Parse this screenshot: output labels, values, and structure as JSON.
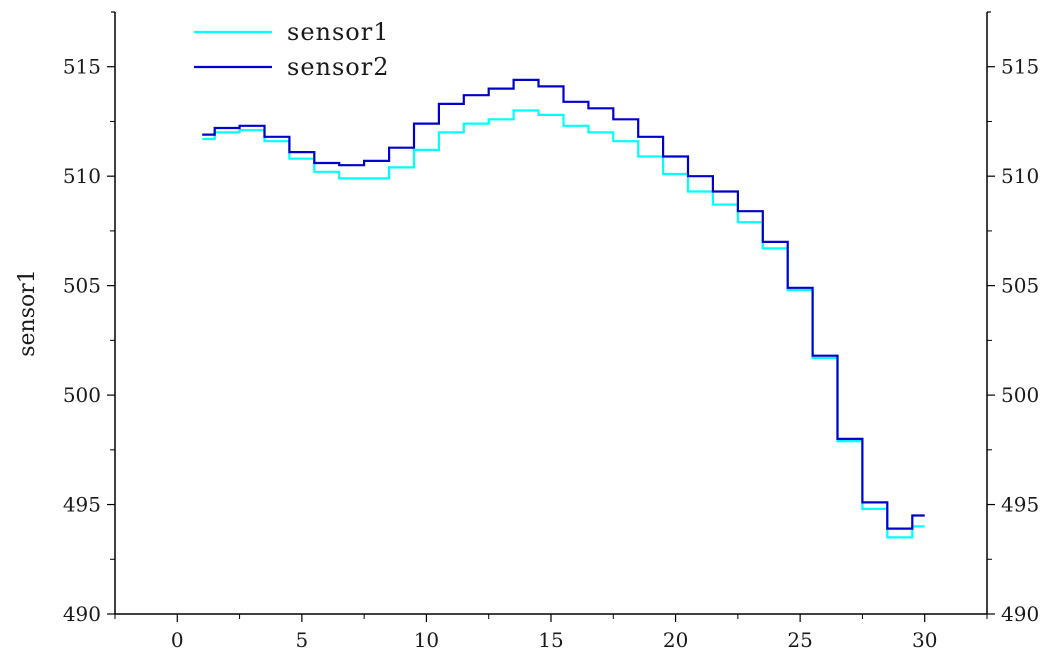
{
  "chart_data": {
    "type": "line",
    "step": true,
    "title": "",
    "xlabel": "",
    "ylabel": "sensor1",
    "xlim": [
      -2.5,
      32.5
    ],
    "ylim": [
      490,
      517.5
    ],
    "x_ticks": [
      0,
      5,
      10,
      15,
      20,
      25,
      30
    ],
    "y_ticks": [
      490,
      495,
      500,
      505,
      510,
      515
    ],
    "secondary_y_axis": true,
    "grid": false,
    "legend": "top-left",
    "series": [
      {
        "name": "sensor1",
        "color": "#00ffff",
        "x": [
          1,
          2,
          3,
          4,
          5,
          6,
          7,
          8,
          9,
          10,
          11,
          12,
          13,
          14,
          15,
          16,
          17,
          18,
          19,
          20,
          21,
          22,
          23,
          24,
          25,
          26,
          27,
          28,
          29,
          30
        ],
        "values": [
          511.7,
          512.0,
          512.1,
          511.6,
          510.8,
          510.2,
          509.9,
          509.9,
          510.4,
          511.2,
          512.0,
          512.4,
          512.6,
          513.0,
          512.8,
          512.3,
          512.0,
          511.6,
          510.9,
          510.1,
          509.3,
          508.7,
          507.9,
          506.7,
          504.8,
          501.7,
          497.9,
          494.8,
          493.5,
          494.0
        ]
      },
      {
        "name": "sensor2",
        "color": "#0000cc",
        "x": [
          1,
          2,
          3,
          4,
          5,
          6,
          7,
          8,
          9,
          10,
          11,
          12,
          13,
          14,
          15,
          16,
          17,
          18,
          19,
          20,
          21,
          22,
          23,
          24,
          25,
          26,
          27,
          28,
          29,
          30
        ],
        "values": [
          511.9,
          512.2,
          512.3,
          511.8,
          511.1,
          510.6,
          510.5,
          510.7,
          511.3,
          512.4,
          513.3,
          513.7,
          514.0,
          514.4,
          514.1,
          513.4,
          513.1,
          512.6,
          511.8,
          510.9,
          510.0,
          509.3,
          508.4,
          507.0,
          504.9,
          501.8,
          498.0,
          495.1,
          493.9,
          494.5
        ]
      }
    ]
  }
}
